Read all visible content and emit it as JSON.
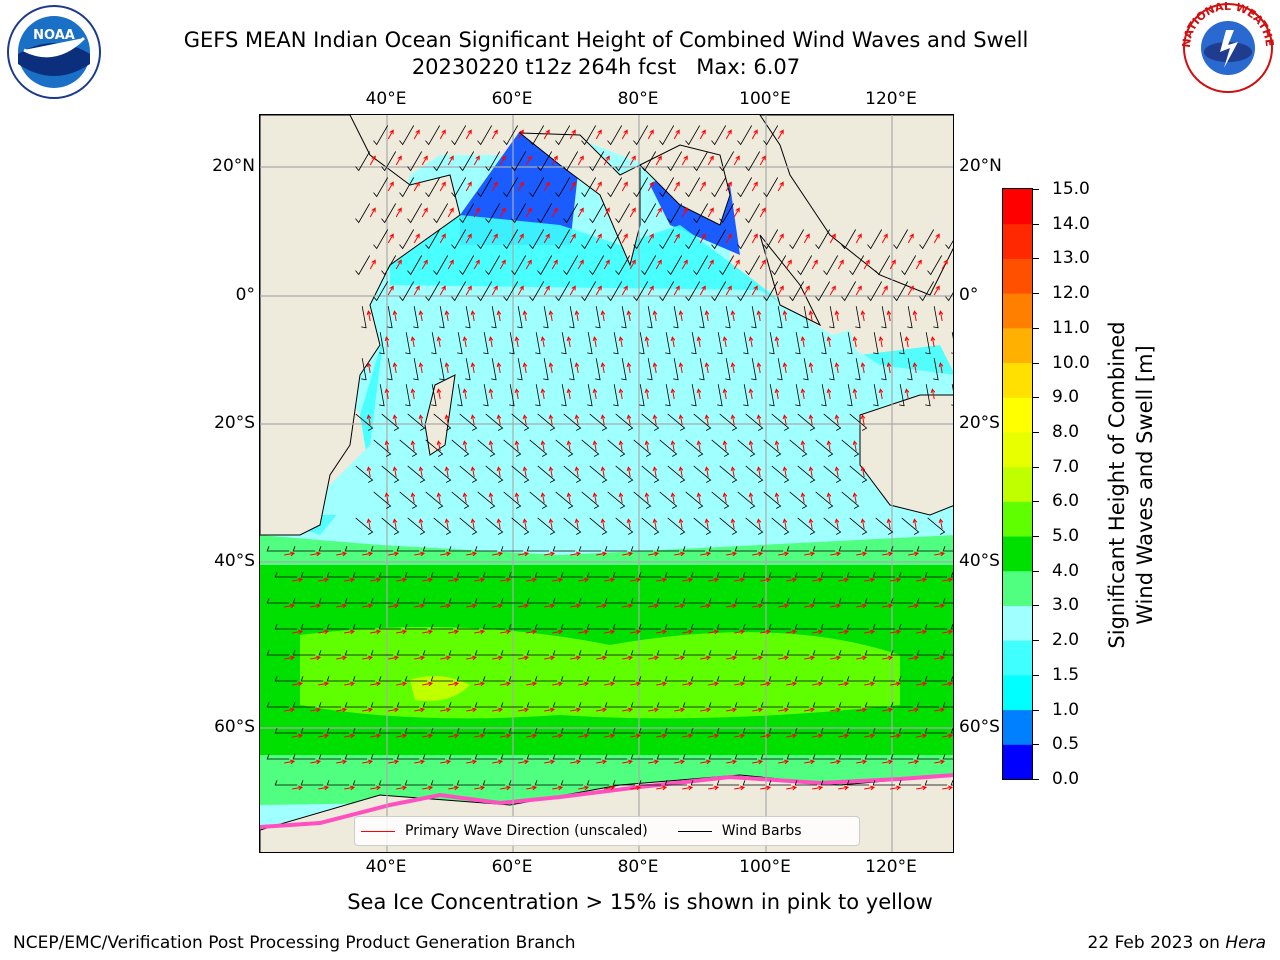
{
  "title_line1": "GEFS MEAN Indian Ocean Significant Height of Combined Wind Waves and Swell",
  "title_line2": "20230220 t12z 264h fcst   Max: 6.07",
  "map": {
    "lon_labels_top": [
      "40°E",
      "60°E",
      "80°E",
      "100°E",
      "120°E"
    ],
    "lon_labels_bottom": [
      "40°E",
      "60°E",
      "80°E",
      "100°E",
      "120°E"
    ],
    "lat_labels_left": [
      "20°N",
      "0°",
      "20°S",
      "40°S",
      "60°S"
    ],
    "lat_labels_right": [
      "20°N",
      "0°",
      "20°S",
      "40°S",
      "60°S"
    ],
    "legend": {
      "wave_direction_label": "Primary Wave Direction (unscaled)",
      "wave_direction_color": "#ff0000",
      "wind_barbs_label": "Wind Barbs",
      "wind_barbs_color": "#000000"
    },
    "land_color": "#efebdc"
  },
  "colorbar": {
    "label_line1": "Significant Height of Combined",
    "label_line2": "Wind Waves and Swell [m]",
    "ticks": [
      "0.0",
      "0.5",
      "1.0",
      "1.5",
      "2.0",
      "3.0",
      "4.0",
      "5.0",
      "6.0",
      "7.0",
      "8.0",
      "9.0",
      "10.0",
      "11.0",
      "12.0",
      "13.0",
      "14.0",
      "15.0"
    ],
    "colors": [
      "#0000ff",
      "#0080ff",
      "#00ffff",
      "#40ffff",
      "#a0ffff",
      "#50ff80",
      "#00e000",
      "#60ff00",
      "#c0ff00",
      "#e8ff00",
      "#ffff00",
      "#ffe000",
      "#ffb000",
      "#ff8000",
      "#ff5000",
      "#ff2800",
      "#ff0000"
    ]
  },
  "sea_ice_note": "Sea Ice Concentration > 15% is shown in pink to yellow",
  "footer_left": "NCEP/EMC/Verification Post Processing Product Generation Branch",
  "footer_date": "22 Feb 2023 on ",
  "footer_host": "Hera",
  "noaa_logo_text": "NOAA",
  "nws_logo_text": "NATIONAL WEATHER SERVICE"
}
